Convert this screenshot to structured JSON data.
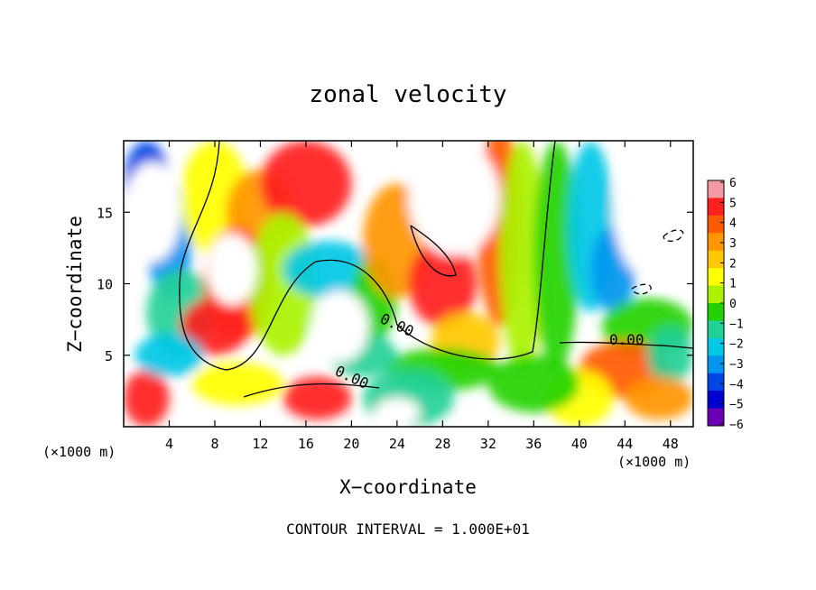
{
  "chart_data": {
    "type": "heatmap",
    "title": "zonal velocity",
    "xlabel": "X−coordinate",
    "ylabel": "Z−coordinate",
    "x_unit_left": "(×1000 m)",
    "x_unit_right": "(×1000 m)",
    "footer": "CONTOUR INTERVAL = 1.000E+01",
    "xlim": [
      0,
      50
    ],
    "ylim": [
      0,
      20
    ],
    "x_ticks": [
      "4",
      "8",
      "12",
      "16",
      "20",
      "24",
      "28",
      "32",
      "36",
      "40",
      "44",
      "48"
    ],
    "y_ticks": [
      "5",
      "10",
      "15"
    ],
    "colorbar": {
      "ticks": [
        "6",
        "5",
        "4",
        "3",
        "2",
        "1",
        "0",
        "−1",
        "−2",
        "−3",
        "−4",
        "−5",
        "−6"
      ],
      "range": [
        -6,
        6
      ],
      "colors": [
        "#f29aa0",
        "#ff2020",
        "#ff5a00",
        "#ff9600",
        "#ffc800",
        "#ffff00",
        "#aaf200",
        "#22d200",
        "#22d098",
        "#00c8e6",
        "#0096f0",
        "#0046e6",
        "#0000d2",
        "#6a00b4"
      ]
    },
    "contour_labels": [
      "0.00",
      "0.00",
      "0.00"
    ]
  }
}
